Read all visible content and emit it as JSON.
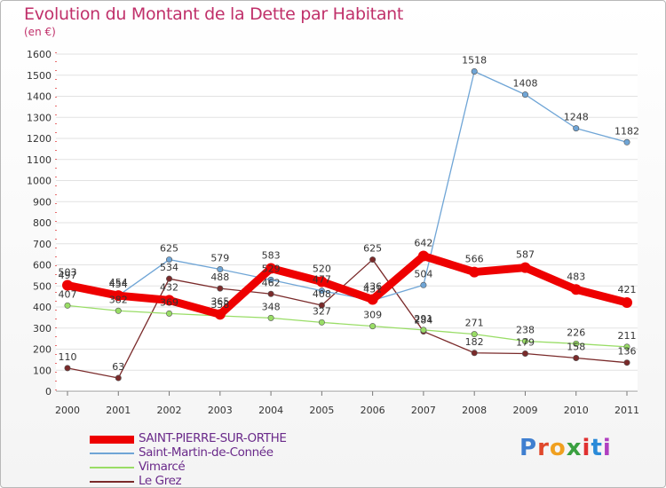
{
  "header": {
    "title": "Evolution du Montant de la Dette par Habitant",
    "subtitle": "(en €)"
  },
  "logo": {
    "text": "Proxiti",
    "colors": [
      "#3f7fd0",
      "#e0482c",
      "#f0a020",
      "#3aa040",
      "#e03030",
      "#2a8ad8",
      "#b040c0"
    ]
  },
  "chart_data": {
    "type": "line",
    "title": "Evolution du Montant de la Dette par Habitant",
    "subtitle": "(en €)",
    "x": [
      "2000",
      "2001",
      "2002",
      "2003",
      "2004",
      "2005",
      "2006",
      "2007",
      "2008",
      "2009",
      "2010",
      "2011"
    ],
    "ylim": [
      0,
      1600
    ],
    "yticks": [
      "0",
      "100",
      "200",
      "300",
      "400",
      "500",
      "600",
      "700",
      "800",
      "900",
      "1000",
      "1100",
      "1200",
      "1300",
      "1400",
      "1500",
      "1600"
    ],
    "grid": "horizontal",
    "legend_position": "bottom-left",
    "series": [
      {
        "name": "SAINT-PIERRE-SUR-ORTHE",
        "color": "#ee0000",
        "values": [
          503,
          454,
          432,
          365,
          583,
          520,
          436,
          642,
          566,
          587,
          483,
          421
        ],
        "labels": [
          "503",
          "454",
          "432",
          "365",
          "583",
          "520",
          "436",
          "642",
          "566",
          "587",
          "483",
          "421"
        ]
      },
      {
        "name": "Saint-Martin-de-Connée",
        "color": "#6fa5d6",
        "values": [
          497,
          454,
          625,
          579,
          529,
          477,
          431,
          504,
          1518,
          1408,
          1248,
          1182
        ],
        "labels": [
          "497",
          "454",
          "625",
          "579",
          "529",
          "477",
          "431",
          "504",
          "1518",
          "1408",
          "1248",
          "1182"
        ]
      },
      {
        "name": "Vimarcé",
        "color": "#99dd66",
        "values": [
          407,
          382,
          369,
          358,
          348,
          327,
          309,
          291,
          271,
          238,
          226,
          211
        ],
        "labels": [
          "407",
          "382",
          "369",
          "358",
          "348",
          "327",
          "309",
          "291",
          "271",
          "238",
          "226",
          "211"
        ]
      },
      {
        "name": "Le Grez",
        "color": "#7a2a2a",
        "values": [
          110,
          63,
          534,
          488,
          462,
          408,
          625,
          284,
          182,
          179,
          158,
          136
        ],
        "labels": [
          "110",
          "63",
          "534",
          "488",
          "462",
          "408",
          "625",
          "284",
          "182",
          "179",
          "158",
          "136"
        ]
      }
    ]
  }
}
